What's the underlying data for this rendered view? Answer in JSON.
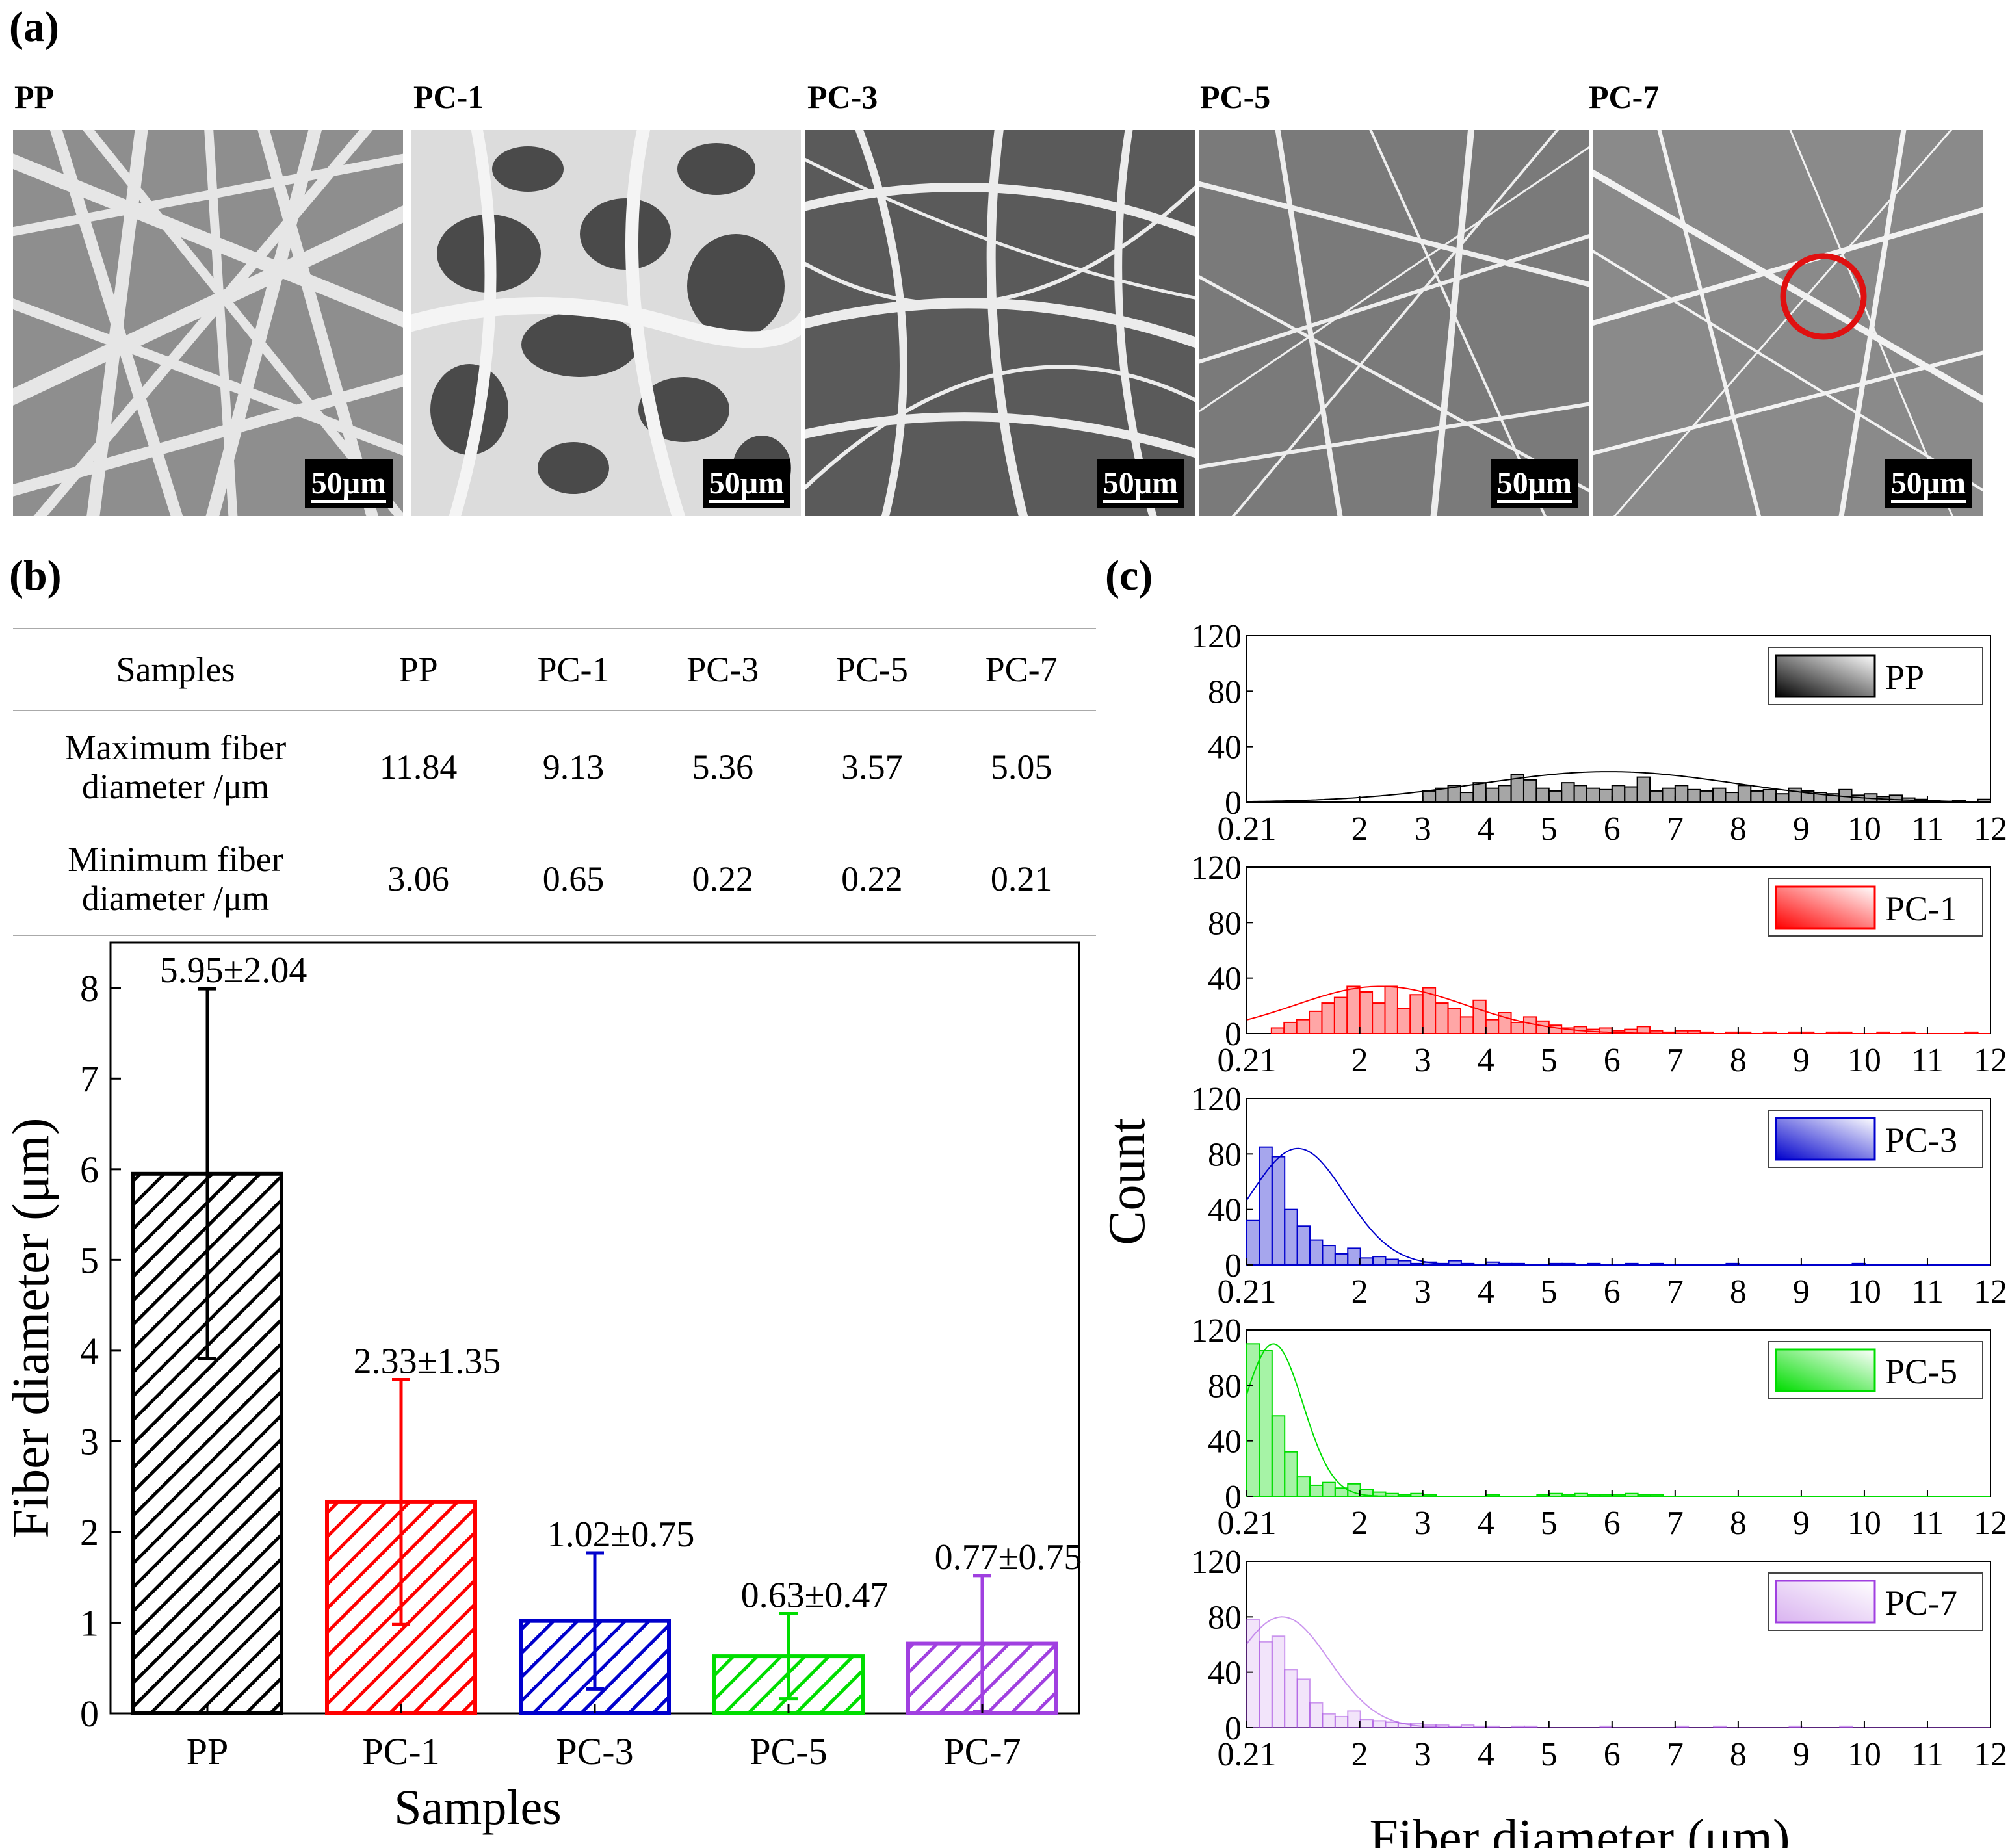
{
  "panels": {
    "a": "(a)",
    "b": "(b)",
    "c": "(c)"
  },
  "sem_images": [
    {
      "label": "PP",
      "scale": "50μm"
    },
    {
      "label": "PC-1",
      "scale": "50μm"
    },
    {
      "label": "PC-3",
      "scale": "50μm"
    },
    {
      "label": "PC-5",
      "scale": "50μm"
    },
    {
      "label": "PC-7",
      "scale": "50μm"
    }
  ],
  "table": {
    "headers": [
      "Samples",
      "PP",
      "PC-1",
      "PC-3",
      "PC-5",
      "PC-7"
    ],
    "rows": [
      {
        "label_line1": "Maximum fiber",
        "label_line2": "diameter /μm",
        "values": [
          "11.84",
          "9.13",
          "5.36",
          "3.57",
          "5.05"
        ]
      },
      {
        "label_line1": "Minimum fiber",
        "label_line2": "diameter /μm",
        "values": [
          "3.06",
          "0.65",
          "0.22",
          "0.22",
          "0.21"
        ]
      }
    ]
  },
  "colors": {
    "PP": "#000000",
    "PC-1": "#ff0000",
    "PC-3": "#0000cc",
    "PC-5": "#00dd00",
    "PC-7": "#a040e0",
    "PC-7-light": "#d9b3f0"
  },
  "chart_data": [
    {
      "type": "bar",
      "title": "",
      "xlabel": "Samples",
      "ylabel": "Fiber diameter (μm)",
      "categories": [
        "PP",
        "PC-1",
        "PC-3",
        "PC-5",
        "PC-7"
      ],
      "values": [
        5.95,
        2.33,
        1.02,
        0.63,
        0.77
      ],
      "errors": [
        2.04,
        1.35,
        0.75,
        0.47,
        0.75
      ],
      "data_labels": [
        "5.95±2.04",
        "2.33±1.35",
        "1.02±0.75",
        "0.63±0.47",
        "0.77±0.75"
      ],
      "ylim": [
        0,
        8.5
      ],
      "yticks": [
        0,
        1,
        2,
        3,
        4,
        5,
        6,
        7,
        8
      ],
      "pattern": "diagonal-hatch"
    },
    {
      "type": "histogram",
      "xlabel": "Fiber diameter (μm)",
      "ylabel": "Count",
      "xlim": [
        0.21,
        12
      ],
      "xticks": [
        "0.21",
        "2",
        "3",
        "4",
        "5",
        "6",
        "7",
        "8",
        "9",
        "10",
        "11",
        "12"
      ],
      "ylim": [
        0,
        120
      ],
      "yticks": [
        0,
        40,
        80,
        120
      ],
      "bin_width": 0.2,
      "series": [
        {
          "name": "PP",
          "fit_mean": 5.95,
          "fit_sd": 2.04,
          "fit_peak": 22,
          "bins_start": 3.0,
          "counts": [
            8,
            10,
            12,
            7,
            14,
            10,
            12,
            20,
            16,
            10,
            8,
            14,
            12,
            10,
            9,
            12,
            11,
            18,
            8,
            10,
            12,
            9,
            8,
            10,
            7,
            12,
            8,
            9,
            6,
            10,
            8,
            7,
            6,
            9,
            5,
            6,
            4,
            5,
            3,
            2,
            1,
            0,
            1,
            0,
            2,
            0,
            1,
            0,
            0,
            0,
            1,
            0,
            2,
            0,
            1,
            0,
            1,
            0
          ]
        },
        {
          "name": "PC-1",
          "fit_mean": 2.33,
          "fit_sd": 1.35,
          "fit_peak": 34,
          "bins_start": 0.6,
          "counts": [
            4,
            8,
            10,
            16,
            22,
            26,
            34,
            30,
            22,
            34,
            18,
            28,
            33,
            22,
            18,
            12,
            24,
            10,
            15,
            8,
            12,
            9,
            6,
            4,
            5,
            3,
            4,
            2,
            3,
            5,
            2,
            1,
            2,
            2,
            1,
            0,
            1,
            1,
            0,
            1,
            0,
            1,
            1,
            0,
            1,
            1,
            0,
            0,
            1,
            0,
            1,
            0,
            0,
            0,
            0,
            1,
            0,
            0,
            1,
            0,
            0,
            0,
            0,
            0,
            0,
            0,
            0,
            0,
            0,
            0,
            0,
            0,
            1
          ]
        },
        {
          "name": "PC-3",
          "fit_mean": 1.02,
          "fit_sd": 0.75,
          "fit_peak": 84,
          "bins_start": 0.21,
          "counts": [
            32,
            85,
            78,
            40,
            28,
            18,
            14,
            8,
            12,
            5,
            6,
            4,
            3,
            1,
            2,
            1,
            3,
            1,
            0,
            2,
            1,
            1,
            0,
            0,
            1,
            1,
            0,
            1,
            0,
            0,
            1,
            0,
            1,
            0,
            0,
            0,
            0,
            0,
            1,
            0,
            0,
            0,
            0,
            0,
            0,
            0,
            0,
            0,
            1
          ]
        },
        {
          "name": "PC-5",
          "fit_mean": 0.63,
          "fit_sd": 0.47,
          "fit_peak": 110,
          "bins_start": 0.21,
          "counts": [
            110,
            105,
            58,
            32,
            14,
            8,
            10,
            6,
            9,
            5,
            3,
            2,
            1,
            2,
            1,
            0,
            0,
            0,
            0,
            1,
            0,
            0,
            0,
            1,
            2,
            1,
            2,
            1,
            1,
            1,
            2,
            1,
            1
          ]
        },
        {
          "name": "PC-7",
          "fit_mean": 0.77,
          "fit_sd": 0.75,
          "fit_peak": 80,
          "bins_start": 0.21,
          "counts": [
            78,
            62,
            66,
            42,
            35,
            18,
            10,
            8,
            12,
            6,
            5,
            4,
            3,
            3,
            2,
            2,
            1,
            2,
            1,
            1,
            0,
            1,
            1,
            0,
            0,
            0,
            0,
            0,
            1,
            0,
            0,
            0,
            0,
            0,
            1,
            0,
            0,
            1,
            0,
            0,
            0,
            0,
            0,
            1,
            0,
            0,
            0,
            1
          ]
        }
      ]
    }
  ]
}
